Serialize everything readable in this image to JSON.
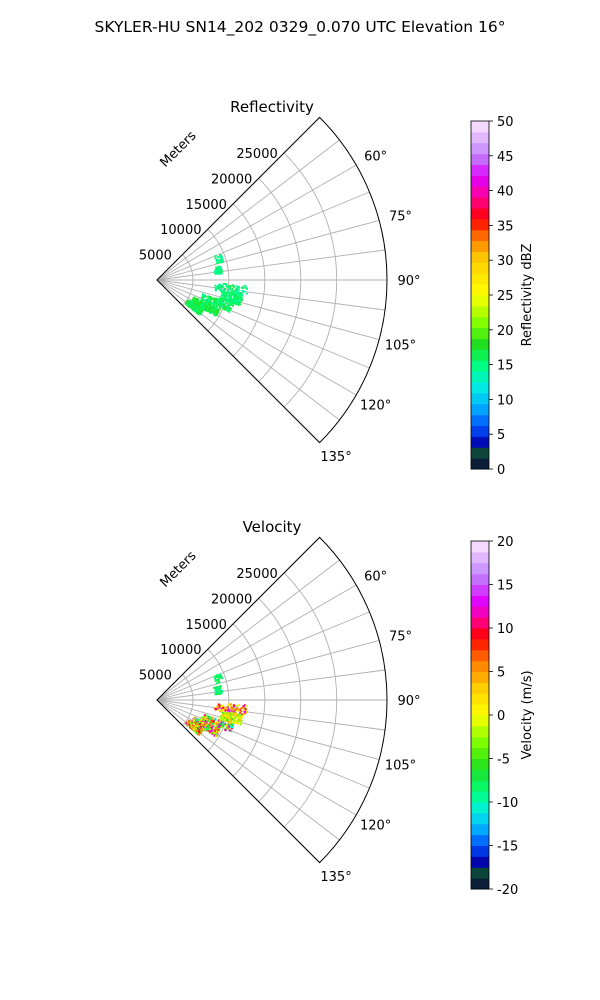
{
  "figure": {
    "title": "SKYLER-HU  SN14_202  0329_0.070 UTC Elevation 16°"
  },
  "chart_data": [
    {
      "type": "polar-wedge-scatter",
      "title": "Reflectivity",
      "range_label": "Meters",
      "range_ticks": [
        5000,
        10000,
        15000,
        20000,
        25000
      ],
      "azimuth_range_deg": [
        45,
        135
      ],
      "azimuth_ticks_deg": [
        60,
        75,
        90,
        105,
        120,
        135
      ],
      "azimuth_tick_labels": [
        "60°",
        "75°",
        "90°",
        "105°",
        "120°",
        "135°"
      ],
      "grid": true,
      "colorbar": {
        "label": "Reflectivity dBZ",
        "min": 0,
        "max": 50,
        "ticks": [
          0,
          5,
          10,
          15,
          20,
          25,
          30,
          35,
          40,
          45,
          50
        ],
        "stops": [
          {
            "v": 0,
            "c": "#0b0b3a"
          },
          {
            "v": 2.5,
            "c": "#0c4a3a"
          },
          {
            "v": 3.5,
            "c": "#0000a8"
          },
          {
            "v": 6,
            "c": "#0050ff"
          },
          {
            "v": 9,
            "c": "#00b0ff"
          },
          {
            "v": 12,
            "c": "#00f0e0"
          },
          {
            "v": 15,
            "c": "#00ff80"
          },
          {
            "v": 18,
            "c": "#20e020"
          },
          {
            "v": 21,
            "c": "#80ff00"
          },
          {
            "v": 25,
            "c": "#ffff00"
          },
          {
            "v": 30,
            "c": "#ffd000"
          },
          {
            "v": 33,
            "c": "#ff8000"
          },
          {
            "v": 36,
            "c": "#ff0000"
          },
          {
            "v": 39,
            "c": "#ff0090"
          },
          {
            "v": 42,
            "c": "#e000ff"
          },
          {
            "v": 45,
            "c": "#c080ff"
          },
          {
            "v": 50,
            "c": "#ffe8ff"
          }
        ]
      },
      "echoes": [
        {
          "az": 96,
          "r_min": 8000,
          "r_max": 12500,
          "value_min": 13,
          "value_max": 17,
          "density": 0.35
        },
        {
          "az": 103,
          "r_min": 9000,
          "r_max": 12000,
          "value_min": 14,
          "value_max": 17,
          "density": 0.5
        },
        {
          "az": 110,
          "r_min": 6500,
          "r_max": 11000,
          "value_min": 14,
          "value_max": 18,
          "density": 0.55
        },
        {
          "az": 118,
          "r_min": 5500,
          "r_max": 9500,
          "value_min": 15,
          "value_max": 19,
          "density": 0.95
        },
        {
          "az": 126,
          "r_min": 5000,
          "r_max": 7500,
          "value_min": 15,
          "value_max": 18,
          "density": 0.9
        },
        {
          "az": 80,
          "r_min": 8000,
          "r_max": 9000,
          "value_min": 14,
          "value_max": 16,
          "density": 0.2
        },
        {
          "az": 70,
          "r_min": 8500,
          "r_max": 9500,
          "value_min": 14,
          "value_max": 16,
          "density": 0.1
        }
      ]
    },
    {
      "type": "polar-wedge-scatter",
      "title": "Velocity",
      "range_label": "Meters",
      "range_ticks": [
        5000,
        10000,
        15000,
        20000,
        25000
      ],
      "azimuth_range_deg": [
        45,
        135
      ],
      "azimuth_ticks_deg": [
        60,
        75,
        90,
        105,
        120,
        135
      ],
      "azimuth_tick_labels": [
        "60°",
        "75°",
        "90°",
        "105°",
        "120°",
        "135°"
      ],
      "grid": true,
      "colorbar": {
        "label": "Velocity (m/s)",
        "min": -20,
        "max": 20,
        "ticks": [
          -20,
          -15,
          -10,
          -5,
          0,
          5,
          10,
          15,
          20
        ],
        "stops": [
          {
            "v": -20,
            "c": "#0b0b3a"
          },
          {
            "v": -18,
            "c": "#0c4a3a"
          },
          {
            "v": -17,
            "c": "#0000a8"
          },
          {
            "v": -15,
            "c": "#0050ff"
          },
          {
            "v": -13,
            "c": "#00b0ff"
          },
          {
            "v": -11,
            "c": "#00f0e0"
          },
          {
            "v": -9,
            "c": "#00ff80"
          },
          {
            "v": -6,
            "c": "#20e020"
          },
          {
            "v": -3,
            "c": "#80ff00"
          },
          {
            "v": 0,
            "c": "#ffff00"
          },
          {
            "v": 3,
            "c": "#ffd000"
          },
          {
            "v": 6,
            "c": "#ff8000"
          },
          {
            "v": 9,
            "c": "#ff0000"
          },
          {
            "v": 11,
            "c": "#ff0090"
          },
          {
            "v": 13,
            "c": "#e000ff"
          },
          {
            "v": 16,
            "c": "#c080ff"
          },
          {
            "v": 20,
            "c": "#ffe8ff"
          }
        ]
      },
      "echoes": [
        {
          "az": 96,
          "r_min": 8000,
          "r_max": 12500,
          "value_min": -2,
          "value_max": 14,
          "density": 0.35
        },
        {
          "az": 103,
          "r_min": 9000,
          "r_max": 12000,
          "value_min": -6,
          "value_max": 4,
          "density": 0.5
        },
        {
          "az": 110,
          "r_min": 6500,
          "r_max": 11000,
          "value_min": -12,
          "value_max": 14,
          "density": 0.55
        },
        {
          "az": 118,
          "r_min": 5500,
          "r_max": 9500,
          "value_min": -10,
          "value_max": 16,
          "density": 0.95
        },
        {
          "az": 126,
          "r_min": 5000,
          "r_max": 7500,
          "value_min": -6,
          "value_max": 12,
          "density": 0.9
        },
        {
          "az": 80,
          "r_min": 8000,
          "r_max": 9000,
          "value_min": -10,
          "value_max": -7,
          "density": 0.2
        },
        {
          "az": 70,
          "r_min": 8500,
          "r_max": 9500,
          "value_min": -9,
          "value_max": -7,
          "density": 0.1
        }
      ]
    }
  ]
}
